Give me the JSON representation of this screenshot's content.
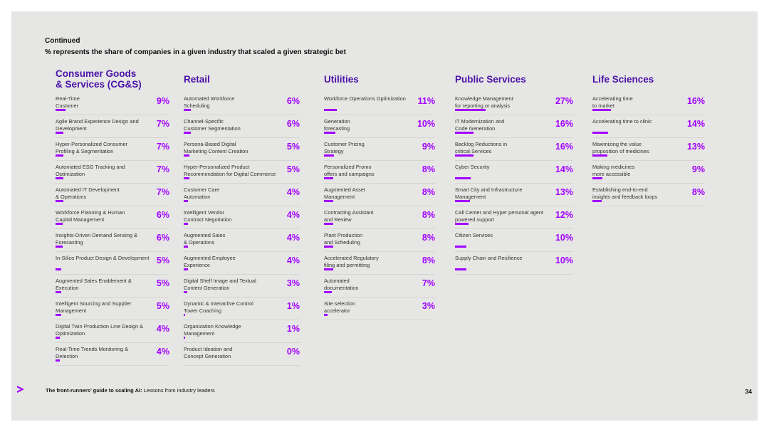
{
  "header": {
    "continued": "Continued",
    "subtitle": "% represents the share of companies in a given industry that scaled a given strategic bet"
  },
  "columns": [
    {
      "title": "Consumer Goods\n& Services (CG&S)",
      "rows": [
        {
          "label": "Real-Time\nCustomer",
          "value": "9%",
          "pct": 9
        },
        {
          "label": "Agile Brand Experience Design and\nDevelopment",
          "value": "7%",
          "pct": 7
        },
        {
          "label": "Hyper-Personalized Consumer\nProfiling & Segmentation",
          "value": "7%",
          "pct": 7
        },
        {
          "label": "Automated ESG Tracking and\nOptimization",
          "value": "7%",
          "pct": 7
        },
        {
          "label": "Automated IT Development\n& Operations",
          "value": "7%",
          "pct": 7
        },
        {
          "label": "Workforce Planning & Human\nCapital Management",
          "value": "6%",
          "pct": 6
        },
        {
          "label": "Insights-Driven Demand Sensing &\nForecasting",
          "value": "6%",
          "pct": 6
        },
        {
          "label": "In-Silico Product Design & Development",
          "value": "5%",
          "pct": 5
        },
        {
          "label": "Augmented Sales Enablement &\nExecution",
          "value": "5%",
          "pct": 5
        },
        {
          "label": "Intelligent Sourcing and Supplier\nManagement",
          "value": "5%",
          "pct": 5
        },
        {
          "label": "Digital Twin Production Line Design &\nOptimization",
          "value": "4%",
          "pct": 4
        },
        {
          "label": "Real-Time Trends Monitoring &\nDetection",
          "value": "4%",
          "pct": 4
        }
      ]
    },
    {
      "title": "Retail",
      "rows": [
        {
          "label": "Automated Workforce\nScheduling",
          "value": "6%",
          "pct": 6
        },
        {
          "label": "Channel-Specific\nCustomer Segmentation",
          "value": "6%",
          "pct": 6
        },
        {
          "label": "Persona-Based Digital\nMarketing Content Creation",
          "value": "5%",
          "pct": 5
        },
        {
          "label": "Hyper-Personalized Product\nRecommendation for Digital Commerce",
          "value": "5%",
          "pct": 5
        },
        {
          "label": "Customer Care\nAutomation",
          "value": "4%",
          "pct": 4
        },
        {
          "label": "Intelligent Vendor\nContract Negotiation",
          "value": "4%",
          "pct": 4
        },
        {
          "label": "Augmented Sales\n& Operations",
          "value": "4%",
          "pct": 4
        },
        {
          "label": "Augmented Employee\nExperience",
          "value": "4%",
          "pct": 4
        },
        {
          "label": "Digital Shelf Image and Textual\nContent Generation",
          "value": "3%",
          "pct": 3
        },
        {
          "label": "Dynamic & Interactive Control\nTower Coaching",
          "value": "1%",
          "pct": 1
        },
        {
          "label": "Organization Knowledge\nManagement",
          "value": "1%",
          "pct": 1
        },
        {
          "label": "Product Ideation and\nConcept Generation",
          "value": "0%",
          "pct": 0
        }
      ]
    },
    {
      "title": "Utilities",
      "rows": [
        {
          "label": "Workforce Operations Optimization",
          "value": "11%",
          "pct": 11
        },
        {
          "label": "Generation\nforecasting",
          "value": "10%",
          "pct": 10
        },
        {
          "label": "Customer Pricing\nStrategy",
          "value": "9%",
          "pct": 9
        },
        {
          "label": "Personalized Promo\noffers and campaigns",
          "value": "8%",
          "pct": 8
        },
        {
          "label": "Augmented Asset\nManagement",
          "value": "8%",
          "pct": 8
        },
        {
          "label": "Contracting Assistant\nand Review",
          "value": "8%",
          "pct": 8
        },
        {
          "label": "Plant Production\nand Scheduling",
          "value": "8%",
          "pct": 8
        },
        {
          "label": "Accelerated Regulatory\n filing and permitting",
          "value": "8%",
          "pct": 8
        },
        {
          "label": "Automated\ndocumentation",
          "value": "7%",
          "pct": 7
        },
        {
          "label": "Site selection\naccelerator",
          "value": "3%",
          "pct": 3
        }
      ]
    },
    {
      "title": "Public Services",
      "rows": [
        {
          "label": "Knowledge Management\nfor reporting or analysis",
          "value": "27%",
          "pct": 27
        },
        {
          "label": "IT Modernization and\nCode Generation",
          "value": "16%",
          "pct": 16
        },
        {
          "label": "Backlog Reductions in\ncritical Services",
          "value": "16%",
          "pct": 16
        },
        {
          "label": "Cyber Security",
          "value": "14%",
          "pct": 14
        },
        {
          "label": "Smart City and Infrastructure\nManagement",
          "value": "13%",
          "pct": 13
        },
        {
          "label": "Call Center and Hyper personal agent\npowered support",
          "value": "12%",
          "pct": 12
        },
        {
          "label": "Citizen Services",
          "value": "10%",
          "pct": 10
        },
        {
          "label": "Supply Chain and Resilience",
          "value": "10%",
          "pct": 10
        }
      ]
    },
    {
      "title": "Life Sciences",
      "rows": [
        {
          "label": "Accelerating time\nto market",
          "value": "16%",
          "pct": 16
        },
        {
          "label": "Accelerating time to clinic",
          "value": "14%",
          "pct": 14
        },
        {
          "label": "Maximizing the value\nproposition of medicines",
          "value": "13%",
          "pct": 13
        },
        {
          "label": "Making medicines\nmore accessible",
          "value": "9%",
          "pct": 9
        },
        {
          "label": "Establishing end-to-end\ninsights and feedback loops",
          "value": "8%",
          "pct": 8
        }
      ]
    }
  ],
  "footer": {
    "bold": "The front-runners’ guide to scaling AI:",
    "rest": " Lessons from industry leaders",
    "page": "34"
  },
  "colors": {
    "accent": "#a100ff",
    "title": "#4a12a8",
    "background": "#e6e6e4"
  }
}
